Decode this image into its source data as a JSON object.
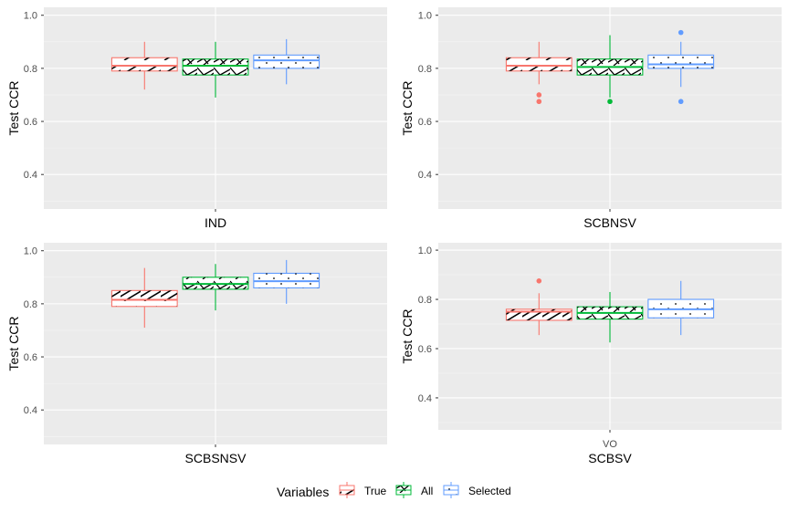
{
  "chart_data": [
    {
      "type": "boxplot",
      "panel": "IND",
      "xlabel": "IND",
      "ylabel": "Test CCR",
      "x_tick": "",
      "ylim": [
        0.27,
        1.03
      ],
      "yticks": [
        0.4,
        0.6,
        0.8,
        1.0
      ],
      "series": [
        {
          "name": "True",
          "q1": 0.79,
          "median": 0.81,
          "q3": 0.84,
          "whisker_low": 0.72,
          "whisker_high": 0.9,
          "outliers": []
        },
        {
          "name": "All",
          "q1": 0.775,
          "median": 0.81,
          "q3": 0.835,
          "whisker_low": 0.69,
          "whisker_high": 0.9,
          "outliers": []
        },
        {
          "name": "Selected",
          "q1": 0.8,
          "median": 0.83,
          "q3": 0.85,
          "whisker_low": 0.74,
          "whisker_high": 0.91,
          "outliers": []
        }
      ]
    },
    {
      "type": "boxplot",
      "panel": "SCBNSV",
      "xlabel": "SCBNSV",
      "ylabel": "Test CCR",
      "x_tick": "",
      "ylim": [
        0.27,
        1.03
      ],
      "yticks": [
        0.4,
        0.6,
        0.8,
        1.0
      ],
      "series": [
        {
          "name": "True",
          "q1": 0.79,
          "median": 0.81,
          "q3": 0.84,
          "whisker_low": 0.74,
          "whisker_high": 0.9,
          "outliers": [
            0.7,
            0.675
          ]
        },
        {
          "name": "All",
          "q1": 0.775,
          "median": 0.805,
          "q3": 0.835,
          "whisker_low": 0.69,
          "whisker_high": 0.925,
          "outliers": [
            0.675
          ]
        },
        {
          "name": "Selected",
          "q1": 0.8,
          "median": 0.815,
          "q3": 0.85,
          "whisker_low": 0.73,
          "whisker_high": 0.9,
          "outliers": [
            0.935,
            0.675
          ]
        }
      ]
    },
    {
      "type": "boxplot",
      "panel": "SCBSNSV",
      "xlabel": "SCBSNSV",
      "ylabel": "Test CCR",
      "x_tick": "",
      "ylim": [
        0.27,
        1.03
      ],
      "yticks": [
        0.4,
        0.6,
        0.8,
        1.0
      ],
      "series": [
        {
          "name": "True",
          "q1": 0.79,
          "median": 0.815,
          "q3": 0.85,
          "whisker_low": 0.71,
          "whisker_high": 0.935,
          "outliers": []
        },
        {
          "name": "All",
          "q1": 0.855,
          "median": 0.875,
          "q3": 0.9,
          "whisker_low": 0.775,
          "whisker_high": 0.95,
          "outliers": []
        },
        {
          "name": "Selected",
          "q1": 0.86,
          "median": 0.885,
          "q3": 0.915,
          "whisker_low": 0.8,
          "whisker_high": 0.965,
          "outliers": []
        }
      ]
    },
    {
      "type": "boxplot",
      "panel": "SCBSV",
      "xlabel": "SCBSV",
      "ylabel": "Test CCR",
      "x_tick": "VO",
      "ylim": [
        0.27,
        1.03
      ],
      "yticks": [
        0.4,
        0.6,
        0.8,
        1.0
      ],
      "series": [
        {
          "name": "True",
          "q1": 0.715,
          "median": 0.75,
          "q3": 0.76,
          "whisker_low": 0.655,
          "whisker_high": 0.825,
          "outliers": [
            0.875
          ]
        },
        {
          "name": "All",
          "q1": 0.72,
          "median": 0.745,
          "q3": 0.77,
          "whisker_low": 0.625,
          "whisker_high": 0.83,
          "outliers": []
        },
        {
          "name": "Selected",
          "q1": 0.725,
          "median": 0.76,
          "q3": 0.8,
          "whisker_low": 0.655,
          "whisker_high": 0.875,
          "outliers": []
        }
      ]
    }
  ],
  "legend": {
    "title": "Variables",
    "items": [
      {
        "label": "True",
        "color": "#f8766d"
      },
      {
        "label": "All",
        "color": "#00ba38"
      },
      {
        "label": "Selected",
        "color": "#619cff"
      }
    ]
  },
  "colors": {
    "panel_background": "#ebebeb",
    "grid": "#ffffff",
    "True": "#f8766d",
    "All": "#00ba38",
    "Selected": "#619cff"
  }
}
